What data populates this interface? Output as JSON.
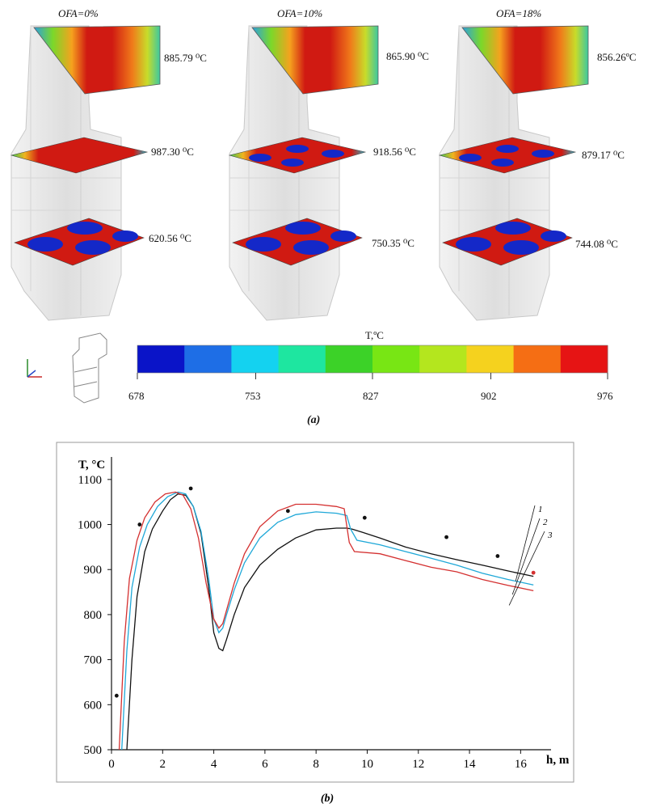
{
  "panel_a": {
    "caption": "(a)",
    "furnaces": [
      {
        "ofa": "OFA=0%",
        "top": "885.79 ⁰C",
        "mid": "987.30 ⁰C",
        "bot": "620.56 ⁰C"
      },
      {
        "ofa": "OFA=10%",
        "top": "865.90 ⁰C",
        "mid": "918.56 ⁰C",
        "bot": "750.35 ⁰C"
      },
      {
        "ofa": "OFA=18%",
        "top": "856.26ºC",
        "mid": "879.17 ⁰C",
        "bot": "744.08 ⁰C"
      }
    ],
    "colorbar": {
      "title": "T,ºC",
      "ticks": [
        "678",
        "753",
        "827",
        "902",
        "976"
      ],
      "tick_values": [
        678,
        753,
        827,
        902,
        976
      ],
      "colors": [
        "#0a14c8",
        "#1e6ee6",
        "#14d2f0",
        "#1ee6a0",
        "#3cd228",
        "#78e614",
        "#b4e61e",
        "#f5d21e",
        "#f56e14",
        "#e61414"
      ]
    },
    "palette": {
      "hot": "#d01a12",
      "cold": "#1428c8",
      "wall": "#e4e4e4"
    }
  },
  "chart_data": {
    "type": "line",
    "caption": "(b)",
    "ylabel": "T, °C",
    "xlabel": "h, m",
    "xlim": [
      0,
      17
    ],
    "ylim": [
      500,
      1150
    ],
    "xticks": [
      0,
      2,
      4,
      6,
      8,
      10,
      12,
      14,
      16
    ],
    "yticks": [
      500,
      600,
      700,
      800,
      900,
      1000,
      1100
    ],
    "grid": false,
    "legend": "top-right",
    "series": [
      {
        "name": "1",
        "color": "#111111",
        "x": [
          0.6,
          0.8,
          1.0,
          1.3,
          1.6,
          2.0,
          2.3,
          2.6,
          2.9,
          3.2,
          3.5,
          3.8,
          4.0,
          4.2,
          4.35,
          4.5,
          4.8,
          5.2,
          5.8,
          6.5,
          7.2,
          8.0,
          8.8,
          9.2,
          9.4,
          9.8,
          10.5,
          11.5,
          12.5,
          13.5,
          14.5,
          15.5,
          16.5
        ],
        "y": [
          500,
          700,
          840,
          940,
          990,
          1030,
          1055,
          1068,
          1065,
          1040,
          980,
          860,
          760,
          725,
          720,
          745,
          800,
          860,
          910,
          945,
          970,
          988,
          992,
          992,
          990,
          983,
          970,
          950,
          935,
          922,
          910,
          897,
          885
        ]
      },
      {
        "name": "2",
        "color": "#1fa8d8",
        "x": [
          0.4,
          0.6,
          0.8,
          1.1,
          1.4,
          1.8,
          2.2,
          2.6,
          2.9,
          3.2,
          3.5,
          3.8,
          4.0,
          4.2,
          4.35,
          4.5,
          4.8,
          5.2,
          5.8,
          6.5,
          7.2,
          8.0,
          8.8,
          9.2,
          9.35,
          9.6,
          10.5,
          11.5,
          12.5,
          13.5,
          14.5,
          15.5,
          16.5
        ],
        "y": [
          500,
          720,
          860,
          950,
          1000,
          1040,
          1062,
          1072,
          1068,
          1040,
          985,
          880,
          790,
          760,
          770,
          800,
          855,
          915,
          970,
          1005,
          1022,
          1028,
          1025,
          1020,
          990,
          965,
          955,
          940,
          925,
          910,
          892,
          878,
          866
        ]
      },
      {
        "name": "3",
        "color": "#d43030",
        "x": [
          0.3,
          0.5,
          0.7,
          1.0,
          1.3,
          1.7,
          2.1,
          2.5,
          2.8,
          3.1,
          3.4,
          3.7,
          4.0,
          4.2,
          4.35,
          4.5,
          4.8,
          5.2,
          5.8,
          6.5,
          7.2,
          8.0,
          8.8,
          9.1,
          9.3,
          9.5,
          10.5,
          11.5,
          12.5,
          13.5,
          14.5,
          15.5,
          16.5
        ],
        "y": [
          500,
          740,
          880,
          965,
          1015,
          1050,
          1068,
          1072,
          1065,
          1035,
          970,
          870,
          790,
          770,
          780,
          810,
          870,
          935,
          995,
          1030,
          1045,
          1045,
          1040,
          1035,
          960,
          940,
          935,
          920,
          905,
          895,
          878,
          865,
          853
        ]
      }
    ],
    "experimental": {
      "x": [
        0.2,
        1.1,
        3.1,
        6.9,
        9.9,
        13.1,
        15.1,
        16.5
      ],
      "y": [
        620,
        1000,
        1080,
        1030,
        1015,
        972,
        930,
        893
      ]
    }
  }
}
